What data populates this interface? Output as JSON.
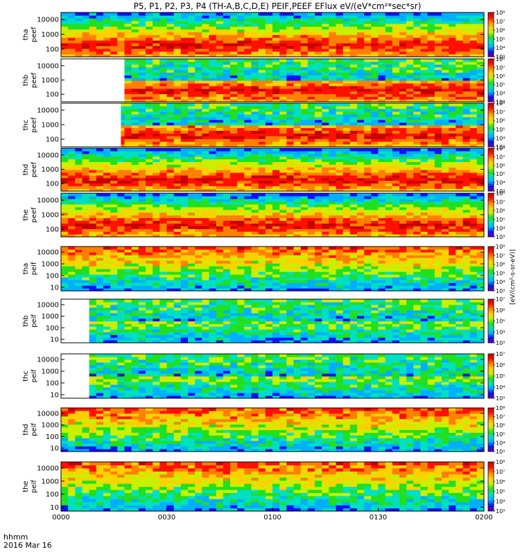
{
  "chart_data": {
    "type": "heatmap",
    "title": "P5, P1, P2, P3, P4 (TH-A,B,C,D,E) PEIF,PEEF EFlux eV/(eV*cm²*sec*sr)",
    "x_axis": {
      "label": "hhmm",
      "date_label": "2016 Mar 16",
      "ticks": [
        "0000",
        "0030",
        "0100",
        "0130",
        "0200"
      ],
      "range": [
        "00:00",
        "02:00"
      ]
    },
    "colorbar_label": "[eV/(cm²-s-sr-eV)]",
    "colormap": [
      "#6a00a8",
      "#1010ff",
      "#00b0ff",
      "#00e0c0",
      "#20e020",
      "#c8f000",
      "#ffd000",
      "#ff8000",
      "#ff1000",
      "#c80000"
    ],
    "panels": [
      {
        "label1": "tha",
        "label2": "peef",
        "y_ticks": [
          "10000",
          "1000",
          "100"
        ],
        "y_range": [
          30,
          30000
        ],
        "cb_ticks": [
          "10⁸",
          "10⁷",
          "10⁶",
          "10⁵",
          "10⁴",
          "10³"
        ],
        "cb_range": [
          1000,
          100000000
        ],
        "data_start": "00:00"
      },
      {
        "label1": "thb",
        "label2": "peef",
        "y_ticks": [
          "10000",
          "1000",
          "100"
        ],
        "y_range": [
          30,
          30000
        ],
        "cb_ticks": [
          "10⁸",
          "10⁷",
          "10⁶",
          "10⁵",
          "10⁴",
          "10³"
        ],
        "cb_range": [
          1000,
          100000000
        ],
        "data_start": "00:18"
      },
      {
        "label1": "thc",
        "label2": "peef",
        "y_ticks": [
          "10000",
          "1000",
          "100"
        ],
        "y_range": [
          30,
          30000
        ],
        "cb_ticks": [
          "10⁸",
          "10⁷",
          "10⁶",
          "10⁵",
          "10⁴",
          "10³"
        ],
        "cb_range": [
          1000,
          100000000
        ],
        "data_start": "00:17"
      },
      {
        "label1": "thd",
        "label2": "peef",
        "y_ticks": [
          "10000",
          "1000",
          "100"
        ],
        "y_range": [
          30,
          30000
        ],
        "cb_ticks": [
          "10⁸",
          "10⁷",
          "10⁶",
          "10⁵",
          "10⁴",
          "10³"
        ],
        "cb_range": [
          1000,
          100000000
        ],
        "data_start": "00:00"
      },
      {
        "label1": "the",
        "label2": "peef",
        "y_ticks": [
          "10000",
          "1000",
          "100"
        ],
        "y_range": [
          30,
          30000
        ],
        "cb_ticks": [
          "10⁸",
          "10⁷",
          "10⁶",
          "10⁵",
          "10⁴",
          "10³"
        ],
        "cb_range": [
          1000,
          100000000
        ],
        "data_start": "00:00"
      },
      {
        "label1": "tha",
        "label2": "peif",
        "y_ticks": [
          "10000",
          "1000",
          "100",
          "10"
        ],
        "y_range": [
          5,
          30000
        ],
        "cb_ticks": [
          "10⁸",
          "10⁷",
          "10⁶",
          "10⁵",
          "10⁴",
          "10³"
        ],
        "cb_range": [
          1000,
          100000000
        ],
        "data_start": "00:00"
      },
      {
        "label1": "thb",
        "label2": "peif",
        "y_ticks": [
          "10000",
          "1000",
          "100",
          "10"
        ],
        "y_range": [
          5,
          30000
        ],
        "cb_ticks": [
          "10⁷",
          "10⁶",
          "10⁵",
          "10⁴",
          "10³"
        ],
        "cb_range": [
          1000,
          10000000
        ],
        "data_start": "00:08"
      },
      {
        "label1": "thc",
        "label2": "peif",
        "y_ticks": [
          "10000",
          "1000",
          "100",
          "10"
        ],
        "y_range": [
          5,
          30000
        ],
        "cb_ticks": [
          "10⁷",
          "10⁶",
          "10⁵",
          "10⁴",
          "10³"
        ],
        "cb_range": [
          1000,
          10000000
        ],
        "data_start": "00:08"
      },
      {
        "label1": "thd",
        "label2": "peif",
        "y_ticks": [
          "10000",
          "1000",
          "100",
          "10"
        ],
        "y_range": [
          5,
          30000
        ],
        "cb_ticks": [
          "10⁸",
          "10⁷",
          "10⁶",
          "10⁵",
          "10⁴",
          "10³"
        ],
        "cb_range": [
          1000,
          100000000
        ],
        "data_start": "00:00"
      },
      {
        "label1": "the",
        "label2": "peif",
        "y_ticks": [
          "10000",
          "1000",
          "100",
          "10"
        ],
        "y_range": [
          5,
          30000
        ],
        "cb_ticks": [
          "10⁸",
          "10⁷",
          "10⁶",
          "10⁵",
          "10⁴",
          "10³"
        ],
        "cb_range": [
          1000,
          100000000
        ],
        "data_start": "00:00"
      }
    ]
  }
}
